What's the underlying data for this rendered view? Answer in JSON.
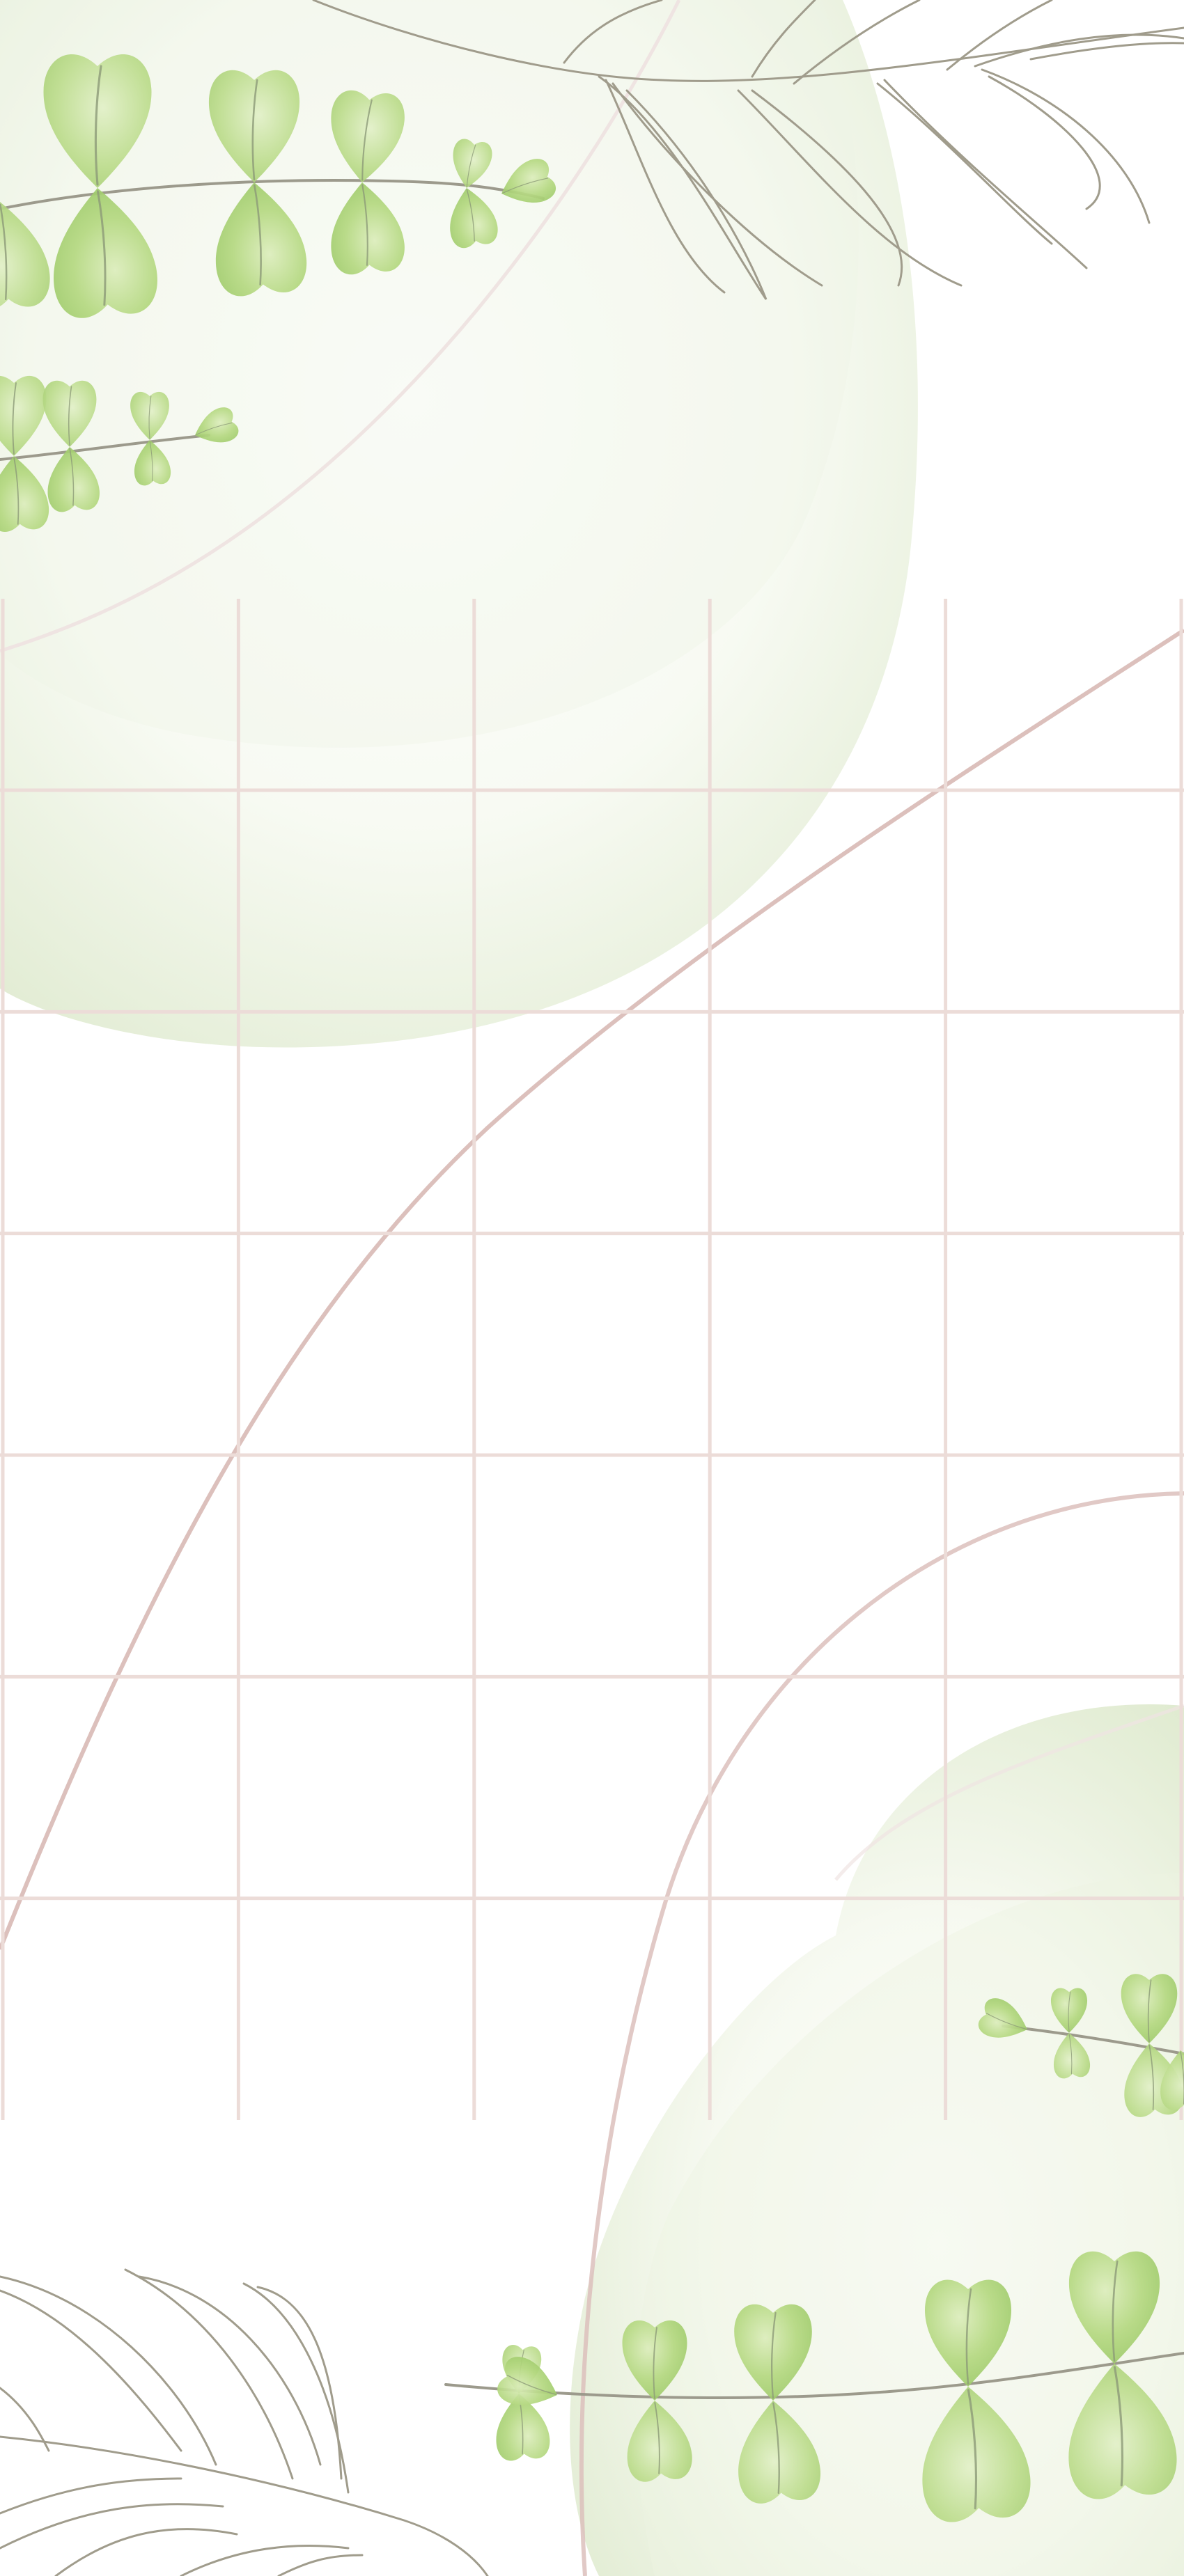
{
  "page": {
    "background_color": "#ffffff"
  },
  "palette": {
    "grid_line": "#ecdcd8",
    "curve_warm": "#dcc0bc",
    "curve_pale": "#efe4e2",
    "leaf_light": "#d4e8b0",
    "leaf_mid": "#a8d070",
    "leaf_dark": "#8cbc58",
    "blob_green": "#e8f0dc",
    "fern_line": "#a09c8c"
  },
  "grid": {
    "columns": 5,
    "rows": 7
  },
  "decorations": {
    "top_left": [
      "green-blob",
      "eucalyptus-vine",
      "small-eucalyptus-vine",
      "fern-line-art"
    ],
    "bottom_right": [
      "green-blob",
      "eucalyptus-vine",
      "small-eucalyptus-vine",
      "fern-line-art"
    ]
  }
}
